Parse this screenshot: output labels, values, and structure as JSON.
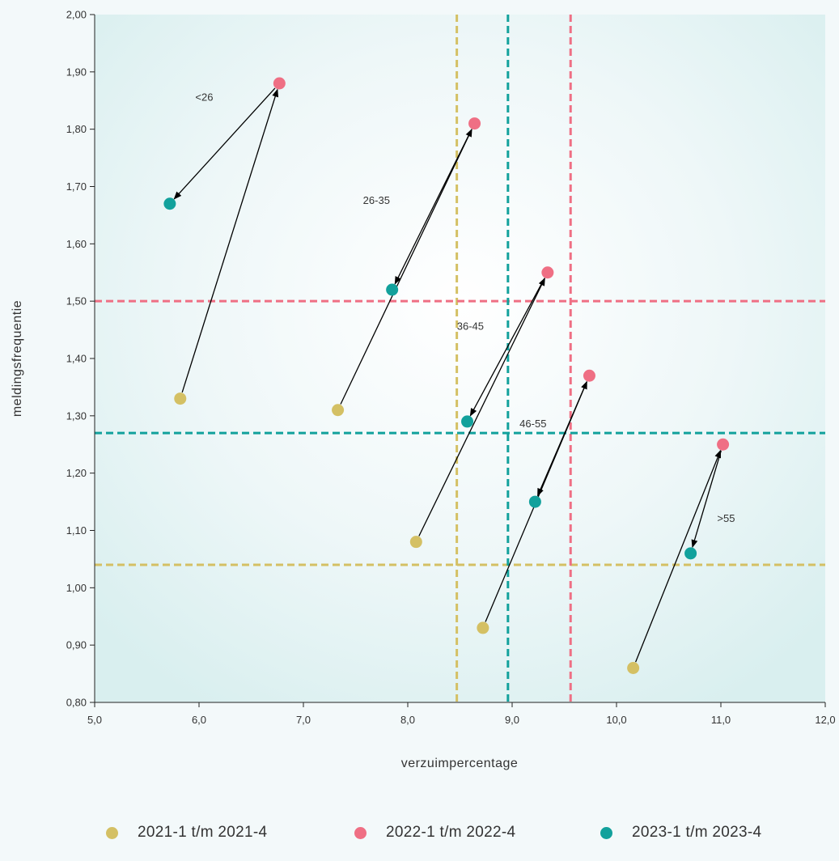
{
  "chart_data": {
    "type": "scatter",
    "xlabel": "verzuimpercentage",
    "ylabel": "meldingsfrequentie",
    "xlim": [
      5.0,
      12.0
    ],
    "ylim": [
      0.8,
      2.0
    ],
    "x_ticks": [
      "5,0",
      "6,0",
      "7,0",
      "8,0",
      "9,0",
      "10,0",
      "11,0",
      "12,0"
    ],
    "y_ticks": [
      "0,80",
      "0,90",
      "1,00",
      "1,10",
      "1,20",
      "1,30",
      "1,40",
      "1,50",
      "1,60",
      "1,70",
      "1,80",
      "1,90",
      "2,00"
    ],
    "grid": false,
    "legend_position": "bottom",
    "series": [
      {
        "name": "2021-1 t/m 2021-4",
        "color": "#d4c064",
        "points": [
          {
            "group": "<26",
            "x": 5.82,
            "y": 1.33
          },
          {
            "group": "26-35",
            "x": 7.33,
            "y": 1.31
          },
          {
            "group": "36-45",
            "x": 8.08,
            "y": 1.08
          },
          {
            "group": "46-55",
            "x": 8.72,
            "y": 0.93
          },
          {
            "group": ">55",
            "x": 10.16,
            "y": 0.86
          }
        ]
      },
      {
        "name": "2022-1 t/m 2022-4",
        "color": "#ef6f84",
        "points": [
          {
            "group": "<26",
            "x": 6.77,
            "y": 1.88
          },
          {
            "group": "26-35",
            "x": 8.64,
            "y": 1.81
          },
          {
            "group": "36-45",
            "x": 9.34,
            "y": 1.55
          },
          {
            "group": "46-55",
            "x": 9.74,
            "y": 1.37
          },
          {
            "group": ">55",
            "x": 11.02,
            "y": 1.25
          }
        ]
      },
      {
        "name": "2023-1 t/m 2023-4",
        "color": "#12a19c",
        "points": [
          {
            "group": "<26",
            "x": 5.72,
            "y": 1.67
          },
          {
            "group": "26-35",
            "x": 7.85,
            "y": 1.52
          },
          {
            "group": "36-45",
            "x": 8.57,
            "y": 1.29
          },
          {
            "group": "46-55",
            "x": 9.22,
            "y": 1.15
          },
          {
            "group": ">55",
            "x": 10.71,
            "y": 1.06
          }
        ]
      }
    ],
    "reference_lines": [
      {
        "series": "2021-1 t/m 2021-4",
        "axis": "x",
        "value": 8.47,
        "color": "#d4c064"
      },
      {
        "series": "2021-1 t/m 2021-4",
        "axis": "y",
        "value": 1.04,
        "color": "#d4c064"
      },
      {
        "series": "2022-1 t/m 2022-4",
        "axis": "x",
        "value": 9.56,
        "color": "#ef6f84"
      },
      {
        "series": "2022-1 t/m 2022-4",
        "axis": "y",
        "value": 1.5,
        "color": "#ef6f84"
      },
      {
        "series": "2023-1 t/m 2023-4",
        "axis": "x",
        "value": 8.96,
        "color": "#12a19c"
      },
      {
        "series": "2023-1 t/m 2023-4",
        "axis": "y",
        "value": 1.27,
        "color": "#12a19c"
      }
    ],
    "group_labels": [
      {
        "text": "<26",
        "x": 6.05,
        "y": 1.85
      },
      {
        "text": "26-35",
        "x": 7.7,
        "y": 1.67
      },
      {
        "text": "36-45",
        "x": 8.6,
        "y": 1.45
      },
      {
        "text": "46-55",
        "x": 9.2,
        "y": 1.28
      },
      {
        "text": ">55",
        "x": 11.05,
        "y": 1.115
      }
    ],
    "arrow_color": "#000000"
  },
  "legend": {
    "items": [
      {
        "label": "2021-1 t/m 2021-4",
        "color": "#d4c064"
      },
      {
        "label": "2022-1 t/m 2022-4",
        "color": "#ef6f84"
      },
      {
        "label": "2023-1 t/m 2023-4",
        "color": "#12a19c"
      }
    ]
  }
}
